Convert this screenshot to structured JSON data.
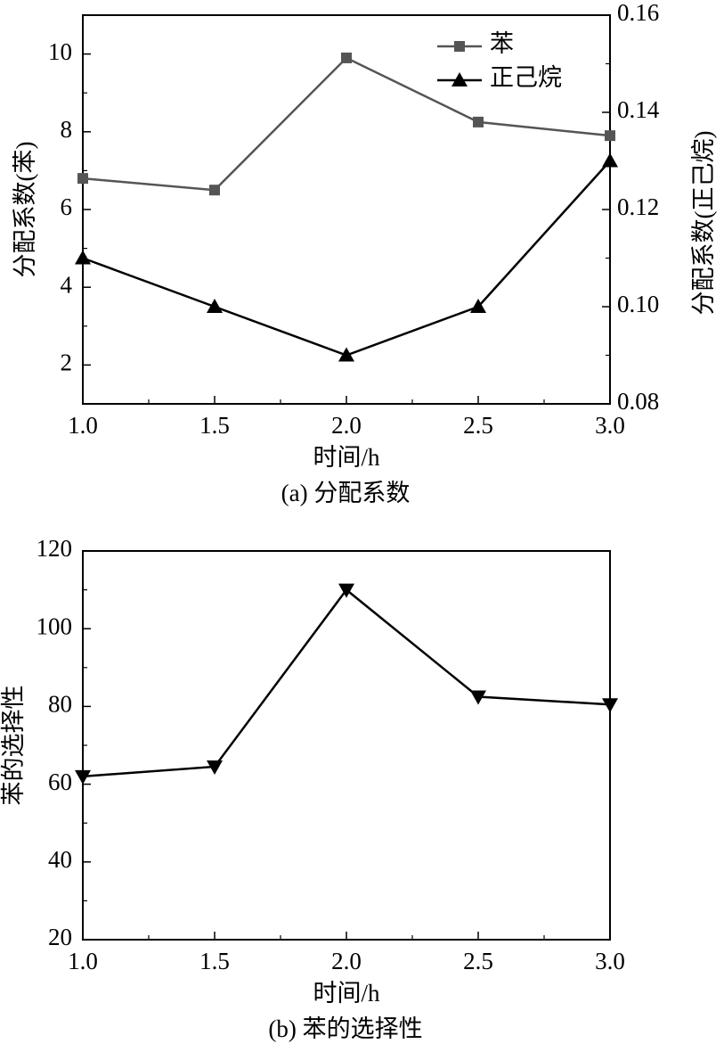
{
  "chart_data": [
    {
      "type": "line",
      "caption": "(a) 分配系数",
      "xlabel": "时间/h",
      "ylabel_left": "分配系数(苯)",
      "ylabel_right": "分配系数(正己烷)",
      "x": [
        1.0,
        1.5,
        2.0,
        2.5,
        3.0
      ],
      "xlim": [
        1.0,
        3.0
      ],
      "xticks": [
        "1.0",
        "1.5",
        "2.0",
        "2.5",
        "3.0"
      ],
      "ylim_left": [
        1,
        11
      ],
      "yticks_left": [
        "2",
        "4",
        "6",
        "8",
        "10"
      ],
      "ylim_right": [
        0.08,
        0.16
      ],
      "yticks_right": [
        "0.08",
        "0.10",
        "0.12",
        "0.14",
        "0.16"
      ],
      "legend_position": "top-right",
      "grid": false,
      "series": [
        {
          "name": "苯",
          "axis": "left",
          "marker": "square",
          "color": "#555555",
          "values": [
            6.8,
            6.5,
            9.9,
            8.25,
            7.9
          ]
        },
        {
          "name": "正己烷",
          "axis": "right",
          "marker": "triangle-up",
          "color": "#000000",
          "values": [
            0.11,
            0.1,
            0.09,
            0.1,
            0.13
          ]
        }
      ]
    },
    {
      "type": "line",
      "caption": "(b) 苯的选择性",
      "xlabel": "时间/h",
      "ylabel": "苯的选择性",
      "x": [
        1.0,
        1.5,
        2.0,
        2.5,
        3.0
      ],
      "xlim": [
        1.0,
        3.0
      ],
      "xticks": [
        "1.0",
        "1.5",
        "2.0",
        "2.5",
        "3.0"
      ],
      "ylim": [
        20,
        120
      ],
      "yticks": [
        "20",
        "40",
        "60",
        "80",
        "100",
        "120"
      ],
      "grid": false,
      "series": [
        {
          "marker": "triangle-down",
          "color": "#000000",
          "values": [
            62,
            64.5,
            110,
            82.5,
            80.5
          ]
        }
      ]
    }
  ]
}
